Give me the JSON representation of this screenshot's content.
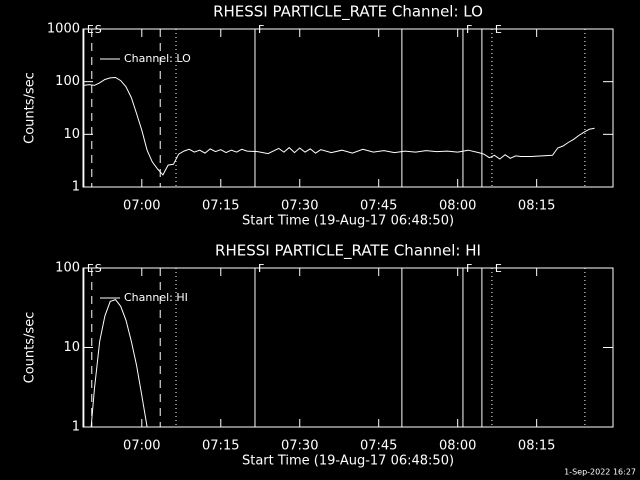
{
  "chart_data": [
    {
      "type": "line",
      "title": "RHESSI PARTICLE_RATE Channel: LO",
      "xlabel": "Start Time (19-Aug-17 06:48:50)",
      "ylabel": "Counts/sec",
      "log_y": true,
      "xlim": [
        "06:48:50",
        "08:29:30"
      ],
      "ylim": [
        1,
        1000
      ],
      "xticks": [
        "07:00",
        "07:15",
        "07:30",
        "07:45",
        "08:00",
        "08:15"
      ],
      "yticks": [
        1,
        10,
        100,
        1000
      ],
      "legend": "top-left",
      "markers": [
        {
          "time": "06:49:00",
          "style": "solid",
          "label": "E"
        },
        {
          "time": "06:50:30",
          "style": "dashed",
          "label": "S"
        },
        {
          "time": "07:03:30",
          "style": "dashed"
        },
        {
          "time": "07:06:30",
          "style": "dotted"
        },
        {
          "time": "07:21:30",
          "style": "solid",
          "label": "F"
        },
        {
          "time": "07:49:24",
          "style": "solid"
        },
        {
          "time": "08:01:00",
          "style": "solid",
          "label": "F"
        },
        {
          "time": "08:04:36",
          "style": "solid"
        },
        {
          "time": "08:06:30",
          "style": "dotted",
          "label": "E"
        },
        {
          "time": "08:24:10",
          "style": "dotted"
        }
      ],
      "x": [
        "06:49",
        "06:50",
        "06:51",
        "06:52",
        "06:53",
        "06:54",
        "06:55",
        "06:56",
        "06:57",
        "06:58",
        "06:59",
        "07:00",
        "07:01",
        "07:02",
        "07:03",
        "07:04",
        "07:05",
        "07:06",
        "07:07",
        "07:08",
        "07:09",
        "07:10",
        "07:11",
        "07:12",
        "07:13",
        "07:14",
        "07:15",
        "07:16",
        "07:17",
        "07:18",
        "07:19",
        "07:20",
        "07:22",
        "07:24",
        "07:26",
        "07:27",
        "07:28",
        "07:29",
        "07:30",
        "07:31",
        "07:32",
        "07:33",
        "07:34",
        "07:36",
        "07:38",
        "07:40",
        "07:42",
        "07:44",
        "07:46",
        "07:48",
        "07:50",
        "07:52",
        "07:54",
        "07:56",
        "07:58",
        "08:00",
        "08:02",
        "08:04",
        "08:05",
        "08:06",
        "08:07",
        "08:08",
        "08:09",
        "08:10",
        "08:11",
        "08:12",
        "08:14",
        "08:16",
        "08:18",
        "08:19",
        "08:20",
        "08:21",
        "08:22",
        "08:23",
        "08:24",
        "08:25",
        "08:26"
      ],
      "series": [
        {
          "name": "Channel: LO",
          "color": "#ffffff",
          "values": [
            85,
            88,
            85,
            95,
            110,
            118,
            120,
            105,
            80,
            50,
            25,
            12,
            5,
            3,
            2.2,
            1.7,
            2.6,
            2.7,
            4.2,
            4.8,
            5.2,
            4.6,
            5.0,
            4.4,
            5.3,
            4.7,
            5.1,
            4.5,
            5.0,
            4.6,
            5.2,
            4.8,
            4.7,
            4.3,
            5.4,
            4.6,
            5.6,
            4.5,
            5.5,
            4.6,
            5.3,
            4.4,
            5.1,
            4.5,
            5.0,
            4.4,
            5.2,
            4.6,
            4.9,
            4.5,
            4.8,
            4.6,
            4.9,
            4.7,
            4.8,
            4.6,
            5.0,
            4.5,
            4.2,
            3.6,
            4.0,
            3.4,
            4.1,
            3.5,
            3.9,
            3.8,
            3.8,
            3.9,
            4.0,
            5.5,
            6.0,
            7.0,
            8.0,
            9.5,
            11,
            12.5,
            13
          ]
        }
      ]
    },
    {
      "type": "line",
      "title": "RHESSI PARTICLE_RATE Channel: HI",
      "xlabel": "Start Time (19-Aug-17 06:48:50)",
      "ylabel": "Counts/sec",
      "log_y": true,
      "xlim": [
        "06:48:50",
        "08:29:30"
      ],
      "ylim": [
        1,
        100
      ],
      "xticks": [
        "07:00",
        "07:15",
        "07:30",
        "07:45",
        "08:00",
        "08:15"
      ],
      "yticks": [
        1,
        10,
        100
      ],
      "legend": "top-left",
      "markers": [
        {
          "time": "06:49:00",
          "style": "solid",
          "label": "E"
        },
        {
          "time": "06:50:30",
          "style": "dashed",
          "label": "S"
        },
        {
          "time": "07:03:30",
          "style": "dashed"
        },
        {
          "time": "07:06:30",
          "style": "dotted"
        },
        {
          "time": "07:21:30",
          "style": "solid",
          "label": "F"
        },
        {
          "time": "07:49:24",
          "style": "solid"
        },
        {
          "time": "08:01:00",
          "style": "solid",
          "label": "F"
        },
        {
          "time": "08:04:36",
          "style": "solid"
        },
        {
          "time": "08:06:30",
          "style": "dotted",
          "label": "E"
        },
        {
          "time": "08:24:10",
          "style": "dotted"
        }
      ],
      "x": [
        "06:50",
        "06:51",
        "06:52",
        "06:53",
        "06:54",
        "06:55",
        "06:56",
        "06:57",
        "06:58",
        "06:59",
        "07:00",
        "07:01",
        "07:02"
      ],
      "series": [
        {
          "name": "Channel: HI",
          "color": "#ffffff",
          "values": [
            0.5,
            3,
            12,
            25,
            38,
            40,
            33,
            22,
            12,
            6,
            2.5,
            1.0,
            0.5
          ]
        }
      ]
    }
  ],
  "footer": "1-Sep-2022 16:27"
}
